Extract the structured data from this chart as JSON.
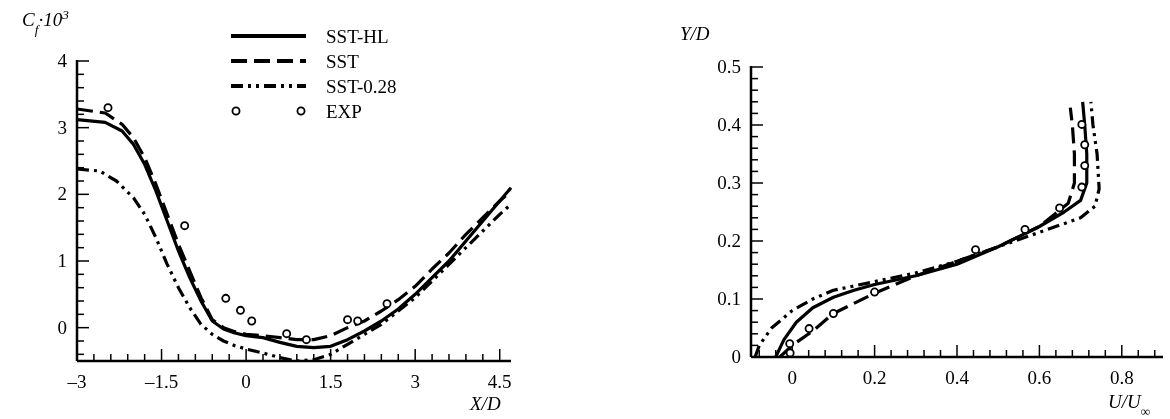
{
  "chart_data": [
    {
      "type": "line",
      "xlabel": "X/D",
      "ylabel": "C$_{f}$·10$^{3}$",
      "xlim": [
        -3,
        4.7
      ],
      "ylim": [
        -0.5,
        4
      ],
      "xticks": [
        {
          "value": -3,
          "label": "–3"
        },
        {
          "value": -2.7,
          "label": null
        },
        {
          "value": -2.4,
          "label": null
        },
        {
          "value": -2.1,
          "label": null
        },
        {
          "value": -1.8,
          "label": null
        },
        {
          "value": -1.5,
          "label": "–1.5"
        },
        {
          "value": -1.2,
          "label": null
        },
        {
          "value": -0.9,
          "label": null
        },
        {
          "value": -0.6,
          "label": null
        },
        {
          "value": -0.3,
          "label": null
        },
        0,
        {
          "value": 0.3,
          "label": null
        },
        {
          "value": 0.6,
          "label": null
        },
        {
          "value": 0.9,
          "label": null
        },
        {
          "value": 1.2,
          "label": null
        },
        1.5,
        {
          "value": 1.8,
          "label": null
        },
        {
          "value": 2.1,
          "label": null
        },
        {
          "value": 2.4,
          "label": null
        },
        {
          "value": 2.7,
          "label": null
        },
        3,
        {
          "value": 3.3,
          "label": null
        },
        {
          "value": 3.6,
          "label": null
        },
        {
          "value": 3.9,
          "label": null
        },
        {
          "value": 4.2,
          "label": null
        },
        4.5
      ],
      "yticks": [
        {
          "value": -0.4,
          "label": null
        },
        {
          "value": -0.2,
          "label": null
        },
        0,
        {
          "value": 0.2,
          "label": null
        },
        {
          "value": 0.4,
          "label": null
        },
        {
          "value": 0.6,
          "label": null
        },
        {
          "value": 0.8,
          "label": null
        },
        1,
        {
          "value": 1.2,
          "label": null
        },
        {
          "value": 1.4,
          "label": null
        },
        {
          "value": 1.6,
          "label": null
        },
        {
          "value": 1.8,
          "label": null
        },
        2,
        {
          "value": 2.2,
          "label": null
        },
        {
          "value": 2.4,
          "label": null
        },
        {
          "value": 2.6,
          "label": null
        },
        {
          "value": 2.8,
          "label": null
        },
        3,
        {
          "value": 3.2,
          "label": null
        },
        {
          "value": 3.4,
          "label": null
        },
        {
          "value": 3.6,
          "label": null
        },
        {
          "value": 3.8,
          "label": null
        },
        4
      ],
      "legend": "top right",
      "grid": false,
      "series": [
        {
          "name": "SST-HL",
          "color": "#000000",
          "line_style": "solid",
          "x": [
            -3,
            -2.5,
            -2.2,
            -2,
            -1.8,
            -1.6,
            -1.4,
            -1.2,
            -1,
            -0.8,
            -0.6,
            -0.4,
            -0.2,
            0,
            0.3,
            0.6,
            0.9,
            1.2,
            1.5,
            1.8,
            2.1,
            2.4,
            2.7,
            3,
            3.3,
            3.6,
            3.9,
            4.2,
            4.5,
            4.7
          ],
          "values": [
            3.12,
            3.08,
            2.95,
            2.75,
            2.45,
            2.05,
            1.6,
            1.15,
            0.75,
            0.4,
            0.1,
            -0.02,
            -0.08,
            -0.12,
            -0.15,
            -0.22,
            -0.28,
            -0.3,
            -0.28,
            -0.18,
            -0.05,
            0.1,
            0.28,
            0.5,
            0.75,
            1,
            1.3,
            1.6,
            1.9,
            2.1
          ]
        },
        {
          "name": "SST",
          "color": "#000000",
          "line_style": "dashed",
          "x": [
            -3,
            -2.5,
            -2.2,
            -2,
            -1.8,
            -1.6,
            -1.4,
            -1.2,
            -1,
            -0.8,
            -0.6,
            -0.4,
            -0.2,
            0,
            0.3,
            0.6,
            0.9,
            1.2,
            1.5,
            1.8,
            2.1,
            2.4,
            2.7,
            3,
            3.3,
            3.6,
            3.9,
            4.2,
            4.5,
            4.7
          ],
          "values": [
            3.28,
            3.22,
            3.05,
            2.85,
            2.55,
            2.15,
            1.7,
            1.25,
            0.85,
            0.45,
            0.12,
            0,
            -0.06,
            -0.1,
            -0.12,
            -0.15,
            -0.18,
            -0.18,
            -0.12,
            0,
            0.1,
            0.25,
            0.42,
            0.62,
            0.88,
            1.12,
            1.4,
            1.65,
            1.9,
            2.05
          ]
        },
        {
          "name": "SST-0.28",
          "color": "#000000",
          "line_style": "dashdot",
          "x": [
            -3,
            -2.6,
            -2.3,
            -2,
            -1.8,
            -1.6,
            -1.4,
            -1.2,
            -1,
            -0.8,
            -0.6,
            -0.4,
            -0.2,
            0,
            0.3,
            0.6,
            0.9,
            1.2,
            1.5,
            1.8,
            2.1,
            2.4,
            2.7,
            3,
            3.3,
            3.6,
            3.9,
            4.2,
            4.5,
            4.7
          ],
          "values": [
            2.38,
            2.35,
            2.2,
            1.95,
            1.7,
            1.35,
            0.95,
            0.6,
            0.3,
            0.05,
            -0.1,
            -0.2,
            -0.27,
            -0.32,
            -0.38,
            -0.45,
            -0.5,
            -0.48,
            -0.4,
            -0.25,
            -0.1,
            0.05,
            0.25,
            0.45,
            0.7,
            0.95,
            1.2,
            1.45,
            1.7,
            1.85
          ]
        },
        {
          "name": "EXP",
          "type": "scatter",
          "marker": "circle",
          "color": "#000000",
          "x": [
            -2.45,
            -1.09,
            -0.36,
            -0.1,
            0.1,
            0.72,
            1.07,
            1.8,
            1.98,
            2.5
          ],
          "values": [
            3.3,
            1.53,
            0.44,
            0.26,
            0.1,
            -0.09,
            -0.18,
            0.12,
            0.1,
            0.36
          ]
        }
      ]
    },
    {
      "type": "line",
      "xlabel": "U/U$_{∞}$",
      "ylabel": "Y/D",
      "xlim": [
        -0.1,
        0.9
      ],
      "ylim": [
        0,
        0.5
      ],
      "xticks": [
        {
          "value": -0.08,
          "label": null
        },
        {
          "value": -0.04,
          "label": null
        },
        0,
        {
          "value": 0.04,
          "label": null
        },
        {
          "value": 0.08,
          "label": null
        },
        {
          "value": 0.12,
          "label": null
        },
        {
          "value": 0.16,
          "label": null
        },
        0.2,
        {
          "value": 0.24,
          "label": null
        },
        {
          "value": 0.28,
          "label": null
        },
        {
          "value": 0.32,
          "label": null
        },
        {
          "value": 0.36,
          "label": null
        },
        0.4,
        {
          "value": 0.44,
          "label": null
        },
        {
          "value": 0.48,
          "label": null
        },
        {
          "value": 0.52,
          "label": null
        },
        {
          "value": 0.56,
          "label": null
        },
        0.6,
        {
          "value": 0.64,
          "label": null
        },
        {
          "value": 0.68,
          "label": null
        },
        {
          "value": 0.72,
          "label": null
        },
        {
          "value": 0.76,
          "label": null
        },
        0.8,
        {
          "value": 0.84,
          "label": null
        },
        {
          "value": 0.88,
          "label": null
        }
      ],
      "yticks": [
        0,
        {
          "value": 0.02,
          "label": null
        },
        {
          "value": 0.04,
          "label": null
        },
        {
          "value": 0.06,
          "label": null
        },
        {
          "value": 0.08,
          "label": null
        },
        0.1,
        {
          "value": 0.12,
          "label": null
        },
        {
          "value": 0.14,
          "label": null
        },
        {
          "value": 0.16,
          "label": null
        },
        {
          "value": 0.18,
          "label": null
        },
        0.2,
        {
          "value": 0.22,
          "label": null
        },
        {
          "value": 0.24,
          "label": null
        },
        {
          "value": 0.26,
          "label": null
        },
        {
          "value": 0.28,
          "label": null
        },
        0.3,
        {
          "value": 0.32,
          "label": null
        },
        {
          "value": 0.34,
          "label": null
        },
        {
          "value": 0.36,
          "label": null
        },
        {
          "value": 0.38,
          "label": null
        },
        0.4,
        {
          "value": 0.42,
          "label": null
        },
        {
          "value": 0.44,
          "label": null
        },
        {
          "value": 0.46,
          "label": null
        },
        {
          "value": 0.48,
          "label": null
        },
        0.5
      ],
      "grid": false,
      "series": [
        {
          "color": "#000000",
          "line_style": "solid",
          "x": [
            -0.04,
            -0.02,
            0.01,
            0.05,
            0.1,
            0.15,
            0.2,
            0.3,
            0.4,
            0.5,
            0.6,
            0.66,
            0.7,
            0.715,
            0.715,
            0.71,
            0.705
          ],
          "values": [
            0,
            0.03,
            0.06,
            0.085,
            0.103,
            0.115,
            0.125,
            0.14,
            0.16,
            0.19,
            0.225,
            0.25,
            0.27,
            0.3,
            0.35,
            0.4,
            0.44
          ]
        },
        {
          "color": "#000000",
          "line_style": "dashed",
          "x": [
            -0.03,
            0,
            0.05,
            0.1,
            0.2,
            0.3,
            0.4,
            0.5,
            0.6,
            0.67,
            0.685,
            0.685,
            0.68,
            0.675
          ],
          "values": [
            0,
            0.02,
            0.045,
            0.075,
            0.11,
            0.14,
            0.165,
            0.19,
            0.225,
            0.265,
            0.3,
            0.35,
            0.4,
            0.43
          ]
        },
        {
          "color": "#000000",
          "line_style": "dashdot",
          "x": [
            -0.09,
            -0.08,
            -0.05,
            0,
            0.05,
            0.1,
            0.2,
            0.3,
            0.4,
            0.5,
            0.6,
            0.7,
            0.735,
            0.745,
            0.74,
            0.73,
            0.725
          ],
          "values": [
            0,
            0.02,
            0.05,
            0.08,
            0.1,
            0.115,
            0.13,
            0.145,
            0.165,
            0.19,
            0.215,
            0.24,
            0.26,
            0.29,
            0.35,
            0.4,
            0.44
          ]
        },
        {
          "type": "scatter",
          "marker": "circle",
          "color": "#000000",
          "x": [
            -0.005,
            -0.006,
            0.041,
            0.1,
            0.2,
            0.445,
            0.565,
            0.649,
            0.703,
            0.71,
            0.71,
            0.703
          ],
          "values": [
            0.007,
            0.023,
            0.049,
            0.075,
            0.112,
            0.185,
            0.22,
            0.257,
            0.293,
            0.33,
            0.366,
            0.401
          ]
        }
      ]
    }
  ]
}
